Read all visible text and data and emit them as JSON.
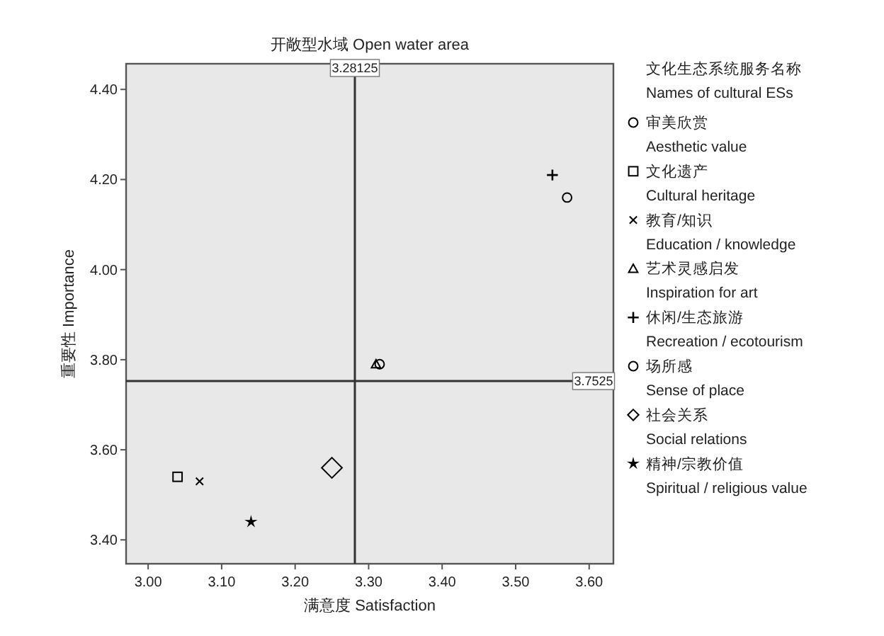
{
  "chart_data": {
    "type": "scatter",
    "title": "开敞型水域  Open water area",
    "xlabel": "满意度  Satisfaction",
    "ylabel": "重要性  Importance",
    "legend_title": "文化生态系统服务名称\nNames of cultural ESs",
    "legend": "right",
    "grid": false,
    "xlim": [
      2.97,
      3.633
    ],
    "ylim": [
      3.347,
      4.457
    ],
    "xticks": [
      {
        "value": 3.0,
        "label": "3.00"
      },
      {
        "value": 3.1,
        "label": "3.10"
      },
      {
        "value": 3.2,
        "label": "3.20"
      },
      {
        "value": 3.3,
        "label": "3.30"
      },
      {
        "value": 3.4,
        "label": "3.40"
      },
      {
        "value": 3.5,
        "label": "3.50"
      },
      {
        "value": 3.6,
        "label": "3.60"
      }
    ],
    "yticks": [
      {
        "value": 3.4,
        "label": "3.40"
      },
      {
        "value": 3.6,
        "label": "3.60"
      },
      {
        "value": 3.8,
        "label": "3.80"
      },
      {
        "value": 4.0,
        "label": "4.00"
      },
      {
        "value": 4.2,
        "label": "4.20"
      },
      {
        "value": 4.4,
        "label": "4.40"
      }
    ],
    "ref_lines": [
      {
        "axis": "x",
        "value": 3.28125,
        "label": "3.28125",
        "color": "#333333"
      },
      {
        "axis": "y",
        "value": 3.7525,
        "label": "3.7525",
        "color": "#333333"
      }
    ],
    "series": [
      {
        "name": "审美欣赏\nAesthetic value",
        "color": "#000000",
        "marker": "circle",
        "x": [
          3.57
        ],
        "values": [
          4.16
        ]
      },
      {
        "name": "文化遗产\nCultural heritage",
        "color": "#000000",
        "marker": "square",
        "x": [
          3.04
        ],
        "values": [
          3.54
        ]
      },
      {
        "name": "教育/知识\nEducation / knowledge",
        "color": "#000000",
        "marker": "x",
        "x": [
          3.07
        ],
        "values": [
          3.53
        ]
      },
      {
        "name": "艺术灵感启发\nInspiration for art",
        "color": "#000000",
        "marker": "triangle",
        "x": [
          3.31
        ],
        "values": [
          3.79
        ]
      },
      {
        "name": "休闲/生态旅游\nRecreation / ecotourism",
        "color": "#000000",
        "marker": "plus",
        "x": [
          3.55
        ],
        "values": [
          4.21
        ]
      },
      {
        "name": "场所感\nSense of place",
        "color": "#000000",
        "marker": "circle",
        "x": [
          3.315
        ],
        "values": [
          3.79
        ]
      },
      {
        "name": "社会关系\nSocial relations",
        "color": "#000000",
        "marker": "diamond",
        "x": [
          3.25
        ],
        "values": [
          3.56
        ]
      },
      {
        "name": "精神/宗教价值\nSpiritual / religious value",
        "color": "#000000",
        "marker": "star",
        "x": [
          3.14
        ],
        "values": [
          3.44
        ]
      }
    ]
  }
}
